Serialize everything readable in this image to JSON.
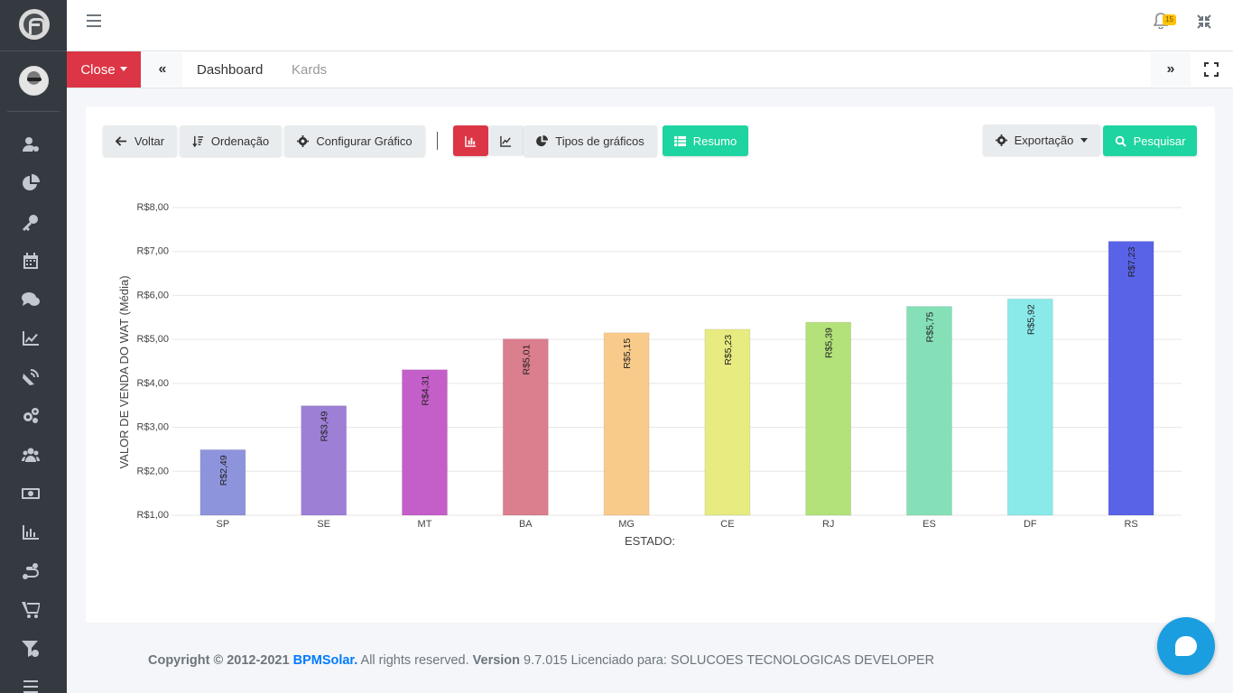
{
  "topbar": {
    "notification_count": "15"
  },
  "tabs": {
    "close_label": "Close",
    "dashboard_label": "Dashboard",
    "kards_label": "Kards"
  },
  "toolbar": {
    "voltar": "Voltar",
    "ordenacao": "Ordenação",
    "configurar": "Configurar Gráfico",
    "tipos": "Tipos de gráficos",
    "resumo": "Resumo",
    "exportacao": "Exportação",
    "pesquisar": "Pesquisar"
  },
  "icons": {
    "sidebar": [
      "user-cog-icon",
      "pie-chart-icon",
      "key-icon",
      "calendar-icon",
      "comments-icon",
      "line-chart-icon",
      "satellite-dish-icon",
      "cogs-icon",
      "users-icon",
      "money-bill-icon",
      "bar-chart-icon",
      "route-icon",
      "cart-icon",
      "filter-icon",
      "menu-icon"
    ]
  },
  "colors": {
    "close": "#dc3545",
    "green": "#1ed4a0",
    "chat": "#1a9ee0",
    "sidebar": "#343a40"
  },
  "chart_data": {
    "type": "bar",
    "xlabel": "ESTADO:",
    "ylabel": "VALOR DE VENDA DO WAT (Média)",
    "categories": [
      "SP",
      "SE",
      "MT",
      "BA",
      "MG",
      "CE",
      "RJ",
      "ES",
      "DF",
      "RS"
    ],
    "values": [
      2.49,
      3.49,
      4.31,
      5.01,
      5.15,
      5.23,
      5.39,
      5.75,
      5.92,
      7.23
    ],
    "data_labels": [
      "R$2,49",
      "R$3,49",
      "R$4,31",
      "R$5,01",
      "R$5,15",
      "R$5,23",
      "R$5,39",
      "R$5,75",
      "R$5,92",
      "R$7,23"
    ],
    "colors": [
      "#8e94dc",
      "#9e7fd6",
      "#c45ec8",
      "#db7e8e",
      "#f9cb8a",
      "#e7eb80",
      "#b2e279",
      "#85e0b8",
      "#8aeaea",
      "#5963e8"
    ],
    "ylim": [
      1,
      8
    ],
    "yticks": [
      "R$1,00",
      "R$2,00",
      "R$3,00",
      "R$4,00",
      "R$5,00",
      "R$6,00",
      "R$7,00",
      "R$8,00"
    ],
    "grid": true
  },
  "footer": {
    "copyright": "Copyright © 2012-2021",
    "brand": "BPMSolar.",
    "rights": " All rights reserved. ",
    "version_label": "Version",
    "version_text": " 9.7.015 Licenciado para: SOLUCOES TECNOLOGICAS DEVELOPER"
  }
}
